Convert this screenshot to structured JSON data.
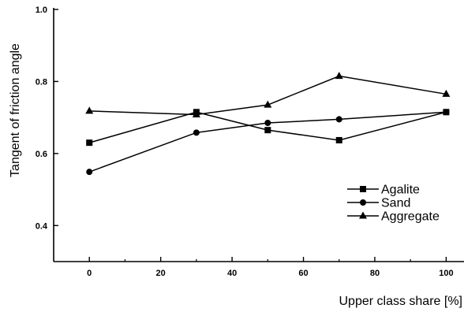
{
  "chart_data": {
    "type": "line",
    "xlabel": "Upper class share [%]",
    "ylabel": "Tangent of friction angle",
    "xlim": [
      -10,
      105
    ],
    "ylim": [
      0.3,
      1.0
    ],
    "x_ticks": [
      0,
      20,
      40,
      60,
      80,
      100
    ],
    "x_tick_labels": [
      "0",
      "20",
      "40",
      "60",
      "80",
      "100"
    ],
    "y_ticks": [
      0.4,
      0.6,
      0.8,
      1.0
    ],
    "y_tick_labels": [
      "0.4",
      "0.6",
      "0.8",
      "1.0"
    ],
    "grid": false,
    "legend_position": "right",
    "series": [
      {
        "name": "Agalite",
        "marker": "square",
        "x": [
          0,
          30,
          50,
          70,
          100
        ],
        "y": [
          0.63,
          0.715,
          0.665,
          0.637,
          0.715
        ]
      },
      {
        "name": "Sand",
        "marker": "circle",
        "x": [
          0,
          30,
          50,
          70,
          100
        ],
        "y": [
          0.549,
          0.658,
          0.685,
          0.695,
          0.715
        ]
      },
      {
        "name": "Aggregate",
        "marker": "triangle",
        "x": [
          0,
          30,
          50,
          70,
          100
        ],
        "y": [
          0.718,
          0.708,
          0.735,
          0.815,
          0.765
        ]
      }
    ]
  }
}
